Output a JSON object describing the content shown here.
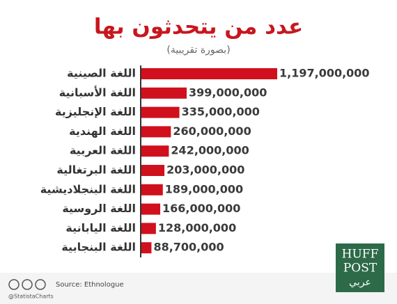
{
  "chart_data": {
    "type": "bar",
    "orientation": "horizontal",
    "title": "عدد من يتحدثون بها",
    "subtitle": "(بصورة تقريبية)",
    "categories": [
      "اللغة الصينية",
      "اللغة الأسبانية",
      "اللغة الإنجليزية",
      "اللغة الهندية",
      "اللغة العربية",
      "اللغة البرتغالية",
      "اللغة البنجلاديشية",
      "اللغة الروسية",
      "اللغة اليابانية",
      "اللغة البنجابية"
    ],
    "values": [
      1197000000,
      399000000,
      335000000,
      260000000,
      242000000,
      203000000,
      189000000,
      166000000,
      128000000,
      88700000
    ],
    "value_labels": [
      "1,197,000,000",
      "399,000,000",
      "335,000,000",
      "260,000,000",
      "242,000,000",
      "203,000,000",
      "189,000,000",
      "166,000,000",
      "128,000,000",
      "88,700,000"
    ],
    "color": "#d0101c",
    "source": "Source: Ethnologue",
    "credit": "@StatistaCharts",
    "logo": {
      "line1": "HUFF",
      "line2": "POST",
      "line3": "عربي"
    }
  }
}
